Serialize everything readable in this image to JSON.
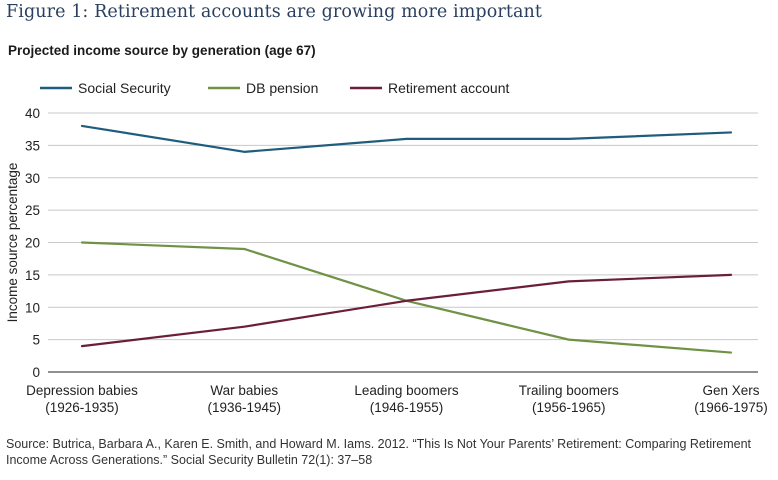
{
  "figure_title": "Figure 1: Retirement accounts are growing more important",
  "chart_data": {
    "type": "line",
    "title": "Projected income source by generation (age 67)",
    "ylabel": "Income source percentage",
    "xlabel": "",
    "ylim": [
      0,
      40
    ],
    "yticks": [
      0,
      5,
      10,
      15,
      20,
      25,
      30,
      35,
      40
    ],
    "grid": "horizontal",
    "legend_position": "top-left",
    "categories": [
      [
        "Depression babies",
        "(1926-1935)"
      ],
      [
        "War babies",
        "(1936-1945)"
      ],
      [
        "Leading boomers",
        "(1946-1955)"
      ],
      [
        "Trailing boomers",
        "(1956-1965)"
      ],
      [
        "Gen Xers",
        "(1966-1975)"
      ]
    ],
    "series": [
      {
        "name": "Social Security",
        "color": "#1f5c7d",
        "values": [
          38,
          34,
          36,
          36,
          37
        ]
      },
      {
        "name": "DB pension",
        "color": "#6f9245",
        "values": [
          20,
          19,
          11,
          5,
          3
        ]
      },
      {
        "name": "Retirement account",
        "color": "#6b1e3c",
        "values": [
          4,
          7,
          11,
          14,
          15
        ]
      }
    ]
  },
  "source_text": "Source: Butrica, Barbara A., Karen E. Smith, and Howard M. Iams. 2012. “This Is Not Your Parents’ Retirement: Comparing Retirement Income Across Generations.” Social Security Bulletin 72(1): 37–58"
}
